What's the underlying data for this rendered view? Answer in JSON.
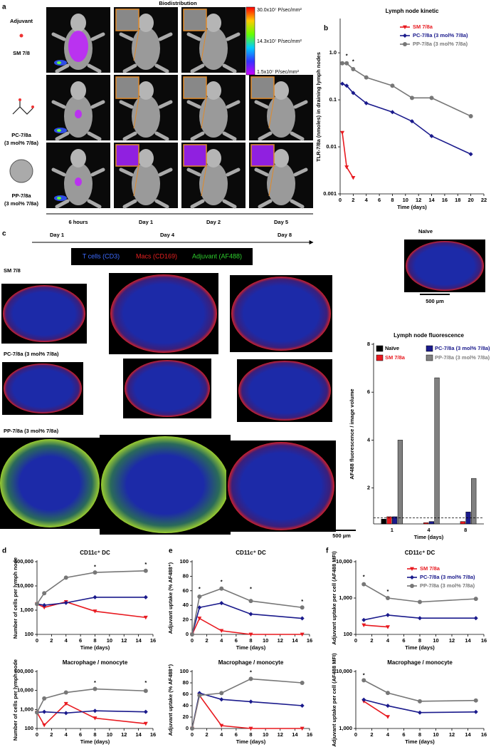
{
  "panel_labels": [
    "a",
    "b",
    "c",
    "d",
    "e",
    "f"
  ],
  "panel_a": {
    "title": "Biodistribution",
    "adjuvant": "Adjuvant",
    "rows": [
      [
        "SM 7/8"
      ],
      [
        "PC-7/8a",
        "(3 mol% 7/8a)"
      ],
      [
        "PP-7/8a",
        "(3 mol% 7/8a)"
      ]
    ],
    "colorbar": [
      "30.0x10⁷ P/sec/mm²",
      "14.3x10⁷ P/sec/mm²",
      "1.5x10⁷ P/sec/mm²"
    ],
    "times": [
      "6 hours",
      "Day 1",
      "Day 2",
      "Day 5"
    ]
  },
  "panel_c": {
    "timeline": [
      "Day 1",
      "Day 4",
      "Day 8"
    ],
    "legend": [
      "T cells (CD3)",
      "Macs (CD169)",
      "Adjuvant (AF488)"
    ],
    "naive": "Naïve",
    "scale_bar": "500 µm",
    "rows": [
      "SM 7/8",
      "PC-7/8a (3 mol% 7/8a)",
      "PP-7/8a (3 mol% 7/8a)"
    ]
  },
  "chart_data": [
    {
      "type": "line",
      "title": "Lymph node kinetic",
      "x_label": "Time (days)",
      "y_label": "TLR-7/8a (nmoles) in draining lymph nodes",
      "yscale": "log",
      "xlim": [
        0,
        22
      ],
      "xticks": [
        0,
        2,
        4,
        6,
        8,
        10,
        12,
        14,
        16,
        18,
        20,
        22
      ],
      "ylim": [
        0.001,
        5
      ],
      "yticks": [
        0.001,
        0.01,
        0.1,
        {
          "value": 1,
          "label": "1.0"
        }
      ],
      "legend": "upper right",
      "annotations": [
        {
          "text": "*",
          "x": 1,
          "y": 0.85
        },
        {
          "text": "*",
          "x": 2,
          "y": 0.65
        }
      ],
      "series": [
        {
          "name": "SM 7/8a",
          "color": "#e8191f",
          "marker": "v",
          "x": [
            0.33,
            1,
            2
          ],
          "values": [
            0.02,
            0.0037,
            0.0022
          ]
        },
        {
          "name": "PC-7/8a (3 mol% 7/8a)",
          "color": "#1a1a8c",
          "marker": "D",
          "x": [
            0.33,
            1,
            2,
            4,
            8,
            11,
            14,
            20
          ],
          "values": [
            0.22,
            0.2,
            0.14,
            0.085,
            0.055,
            0.035,
            0.017,
            0.007
          ]
        },
        {
          "name": "PP-7/8a (3 mol% 7/8a)",
          "color": "#777777",
          "marker": "o",
          "x": [
            0.33,
            1,
            2,
            4,
            8,
            11,
            14,
            20
          ],
          "values": [
            0.6,
            0.6,
            0.45,
            0.3,
            0.2,
            0.11,
            0.11,
            0.045
          ]
        }
      ]
    },
    {
      "type": "bar",
      "title": "Lymph node fluorescence",
      "x_label": "Time (days)",
      "y_label": "AF488 fluorescence / image volume",
      "categories": [
        "1",
        "4",
        "8"
      ],
      "ylim": [
        0.5,
        8
      ],
      "yticks": [
        2,
        4,
        6,
        8
      ],
      "hline": 0.75,
      "legend": "upper left",
      "series": [
        {
          "name": "Naïve",
          "color": "#000000",
          "values": [
            0.7,
            null,
            null
          ]
        },
        {
          "name": "SM 7/8a",
          "color": "#e8191f",
          "values": [
            0.8,
            0.55,
            0.6
          ]
        },
        {
          "name": "PC-7/8a (3 mol% 7/8a)",
          "color": "#1a1a8c",
          "values": [
            0.8,
            0.6,
            1.0
          ]
        },
        {
          "name": "PP-7/8a (3 mol% 7/8a)",
          "color": "#808080",
          "values": [
            4.0,
            6.6,
            2.4
          ]
        }
      ]
    },
    {
      "type": "line",
      "title": "CD11c⁺ DC",
      "x_label": "Time (days)",
      "y_label": "Number of cells per lymph node",
      "yscale": "log",
      "xlim": [
        0,
        16
      ],
      "xticks": [
        0,
        2,
        4,
        6,
        8,
        10,
        12,
        14,
        16
      ],
      "ylim": [
        100,
        100000
      ],
      "yticks": [
        100,
        {
          "value": 1000,
          "label": "1,000"
        },
        {
          "value": 10000,
          "label": "10,000"
        },
        {
          "value": 100000,
          "label": "100,000"
        }
      ],
      "annotations": [
        {
          "text": "*",
          "x": 8,
          "y": 60000
        },
        {
          "text": "*",
          "x": 15,
          "y": 75000
        }
      ],
      "series": [
        {
          "name": "SM 7/8a",
          "color": "#e8191f",
          "marker": "v",
          "x": [
            0,
            1,
            4,
            8,
            15
          ],
          "values": [
            1800,
            1300,
            2200,
            900,
            500
          ]
        },
        {
          "name": "PC-7/8a (3 mol% 7/8a)",
          "color": "#1a1a8c",
          "marker": "D",
          "x": [
            0,
            1,
            4,
            8,
            15
          ],
          "values": [
            1800,
            1600,
            2000,
            3400,
            3400
          ]
        },
        {
          "name": "PP-7/8a (3 mol% 7/8a)",
          "color": "#777777",
          "marker": "o",
          "x": [
            0,
            1,
            4,
            8,
            15
          ],
          "values": [
            1800,
            5000,
            22000,
            36000,
            42000
          ]
        }
      ]
    },
    {
      "type": "line",
      "title": "Macrophage / monocyte",
      "x_label": "Time (days)",
      "y_label": "Number of cells per lymph node",
      "yscale": "log",
      "xlim": [
        0,
        16
      ],
      "xticks": [
        0,
        2,
        4,
        6,
        8,
        10,
        12,
        14,
        16
      ],
      "ylim": [
        100,
        100000
      ],
      "yticks": [
        100,
        {
          "value": 1000,
          "label": "1,000"
        },
        {
          "value": 10000,
          "label": "10,000"
        },
        {
          "value": 100000,
          "label": "100,000"
        }
      ],
      "annotations": [
        {
          "text": "*",
          "x": 8,
          "y": 25000
        },
        {
          "text": "*",
          "x": 15,
          "y": 25000
        }
      ],
      "series": [
        {
          "name": "SM 7/8a",
          "color": "#e8191f",
          "marker": "v",
          "x": [
            0,
            1,
            4,
            8,
            15
          ],
          "values": [
            700,
            150,
            2000,
            350,
            180
          ]
        },
        {
          "name": "PC-7/8a (3 mol% 7/8a)",
          "color": "#1a1a8c",
          "marker": "D",
          "x": [
            0,
            1,
            4,
            8,
            15
          ],
          "values": [
            700,
            750,
            650,
            850,
            750
          ]
        },
        {
          "name": "PP-7/8a (3 mol% 7/8a)",
          "color": "#777777",
          "marker": "o",
          "x": [
            0,
            1,
            4,
            8,
            15
          ],
          "values": [
            700,
            3800,
            7800,
            12000,
            9500
          ]
        }
      ]
    },
    {
      "type": "line",
      "title": "CD11c⁺ DC",
      "x_label": "Time (days)",
      "y_label": "Adjuvant uptake (% AF488⁺)",
      "xlim": [
        0,
        16
      ],
      "xticks": [
        0,
        2,
        4,
        6,
        8,
        10,
        12,
        14,
        16
      ],
      "ylim": [
        0,
        100
      ],
      "yticks": [
        0,
        20,
        40,
        60,
        80,
        100
      ],
      "annotations": [
        {
          "text": "*",
          "x": 1,
          "y": 62
        },
        {
          "text": "*",
          "x": 4,
          "y": 72
        },
        {
          "text": "*",
          "x": 8,
          "y": 62
        },
        {
          "text": "*",
          "x": 15,
          "y": 45
        }
      ],
      "series": [
        {
          "name": "SM 7/8a",
          "color": "#e8191f",
          "marker": "v",
          "x": [
            0,
            1,
            4,
            8,
            15
          ],
          "values": [
            0,
            22,
            5,
            0,
            0
          ]
        },
        {
          "name": "PC-7/8a (3 mol% 7/8a)",
          "color": "#1a1a8c",
          "marker": "D",
          "x": [
            0,
            1,
            4,
            8,
            15
          ],
          "values": [
            0,
            37,
            43,
            28,
            22
          ]
        },
        {
          "name": "PP-7/8a (3 mol% 7/8a)",
          "color": "#777777",
          "marker": "o",
          "x": [
            0,
            1,
            4,
            8,
            15
          ],
          "values": [
            0,
            52,
            63,
            46,
            37
          ]
        }
      ]
    },
    {
      "type": "line",
      "title": "Macrophage / monocyte",
      "x_label": "Time (days)",
      "y_label": "Adjuvant uptake (% AF488⁺)",
      "xlim": [
        0,
        16
      ],
      "xticks": [
        0,
        2,
        4,
        6,
        8,
        10,
        12,
        14,
        16
      ],
      "ylim": [
        0,
        100
      ],
      "yticks": [
        0,
        20,
        40,
        60,
        80,
        100
      ],
      "annotations": [
        {
          "text": "*",
          "x": 8,
          "y": 98
        }
      ],
      "series": [
        {
          "name": "SM 7/8a",
          "color": "#e8191f",
          "marker": "v",
          "x": [
            0,
            1,
            4,
            8,
            15
          ],
          "values": [
            0,
            58,
            5,
            0,
            0
          ]
        },
        {
          "name": "PC-7/8a (3 mol% 7/8a)",
          "color": "#1a1a8c",
          "marker": "D",
          "x": [
            0,
            1,
            4,
            8,
            15
          ],
          "values": [
            0,
            62,
            51,
            47,
            40
          ]
        },
        {
          "name": "PP-7/8a (3 mol% 7/8a)",
          "color": "#777777",
          "marker": "o",
          "x": [
            0,
            1,
            4,
            8,
            15
          ],
          "values": [
            0,
            58,
            62,
            87,
            80
          ]
        }
      ]
    },
    {
      "type": "line",
      "title": "CD11c⁺ DC",
      "x_label": "Time (days)",
      "y_label": "Adjuvant uptake per cell  (AF488 MFI)",
      "yscale": "log",
      "xlim": [
        0,
        16
      ],
      "xticks": [
        0,
        2,
        4,
        6,
        8,
        10,
        12,
        14,
        16
      ],
      "ylim": [
        100,
        10000
      ],
      "yticks": [
        100,
        {
          "value": 1000,
          "label": "1,000"
        },
        {
          "value": 10000,
          "label": "10,000"
        }
      ],
      "legend": "upper right",
      "annotations": [
        {
          "text": "*",
          "x": 1,
          "y": 3800
        },
        {
          "text": "*",
          "x": 4,
          "y": 1500
        }
      ],
      "series": [
        {
          "name": "SM 7/8a",
          "color": "#e8191f",
          "marker": "v",
          "x": [
            1,
            4
          ],
          "values": [
            180,
            160
          ]
        },
        {
          "name": "PC-7/8a (3 mol% 7/8a)",
          "color": "#1a1a8c",
          "marker": "D",
          "x": [
            1,
            4,
            8,
            15
          ],
          "values": [
            250,
            340,
            280,
            280
          ]
        },
        {
          "name": "PP-7/8a (3 mol% 7/8a)",
          "color": "#777777",
          "marker": "o",
          "x": [
            1,
            4,
            8,
            15
          ],
          "values": [
            2400,
            1000,
            780,
            950
          ]
        }
      ]
    },
    {
      "type": "line",
      "title": "Macrophage / monocyte",
      "x_label": "Time (days)",
      "y_label": "Adjuvant uptake per cell  (AF488 MFI)",
      "yscale": "log",
      "xlim": [
        0,
        16
      ],
      "xticks": [
        0,
        2,
        4,
        6,
        8,
        10,
        12,
        14,
        16
      ],
      "ylim": [
        1000,
        10000
      ],
      "yticks": [
        {
          "value": 1000,
          "label": "1,000"
        },
        {
          "value": 10000,
          "label": "10,000"
        }
      ],
      "annotations": [
        {
          "text": "*",
          "x": 1,
          "y": 8500
        }
      ],
      "series": [
        {
          "name": "SM 7/8a",
          "color": "#e8191f",
          "marker": "v",
          "x": [
            1,
            4
          ],
          "values": [
            3000,
            1600
          ]
        },
        {
          "name": "PC-7/8a (3 mol% 7/8a)",
          "color": "#1a1a8c",
          "marker": "D",
          "x": [
            1,
            4,
            8,
            15
          ],
          "values": [
            3200,
            2500,
            1900,
            1950
          ]
        },
        {
          "name": "PP-7/8a (3 mol% 7/8a)",
          "color": "#777777",
          "marker": "o",
          "x": [
            1,
            4,
            8,
            15
          ],
          "values": [
            7000,
            4200,
            3000,
            3100
          ]
        }
      ]
    }
  ]
}
